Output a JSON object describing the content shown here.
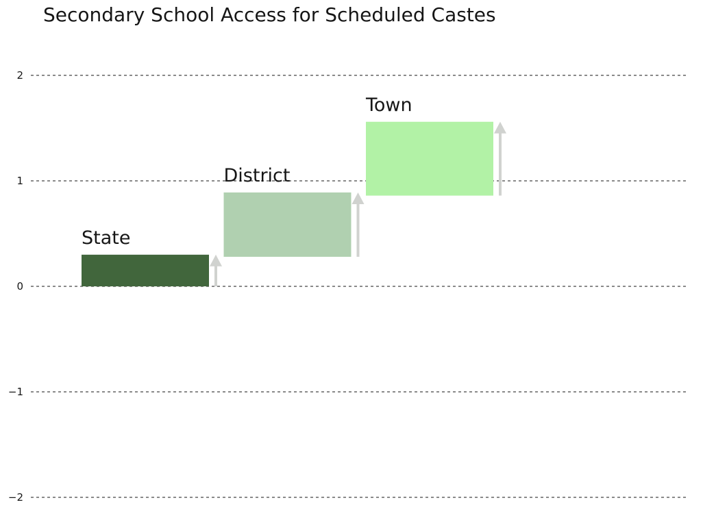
{
  "chart_data": {
    "type": "waterfall",
    "title": "Secondary School Access for Scheduled Castes",
    "xlabel": "",
    "ylabel": "",
    "ylim": [
      -2,
      2
    ],
    "yticks": [
      2,
      1,
      0,
      -1,
      -2
    ],
    "ytick_labels": [
      "2",
      "1",
      "0",
      "−1",
      "−2"
    ],
    "grid": true,
    "gridline_style": "dashed",
    "categories": [
      "State",
      "District",
      "Town"
    ],
    "steps": [
      {
        "label": "State",
        "start": 0,
        "end": 0.3,
        "color": "#41663c"
      },
      {
        "label": "District",
        "start": 0.28,
        "end": 0.89,
        "color": "#b0d0b0"
      },
      {
        "label": "Town",
        "start": 0.86,
        "end": 1.56,
        "color": "#b2f2a6"
      }
    ],
    "arrow_color": "#d0d2cf"
  }
}
